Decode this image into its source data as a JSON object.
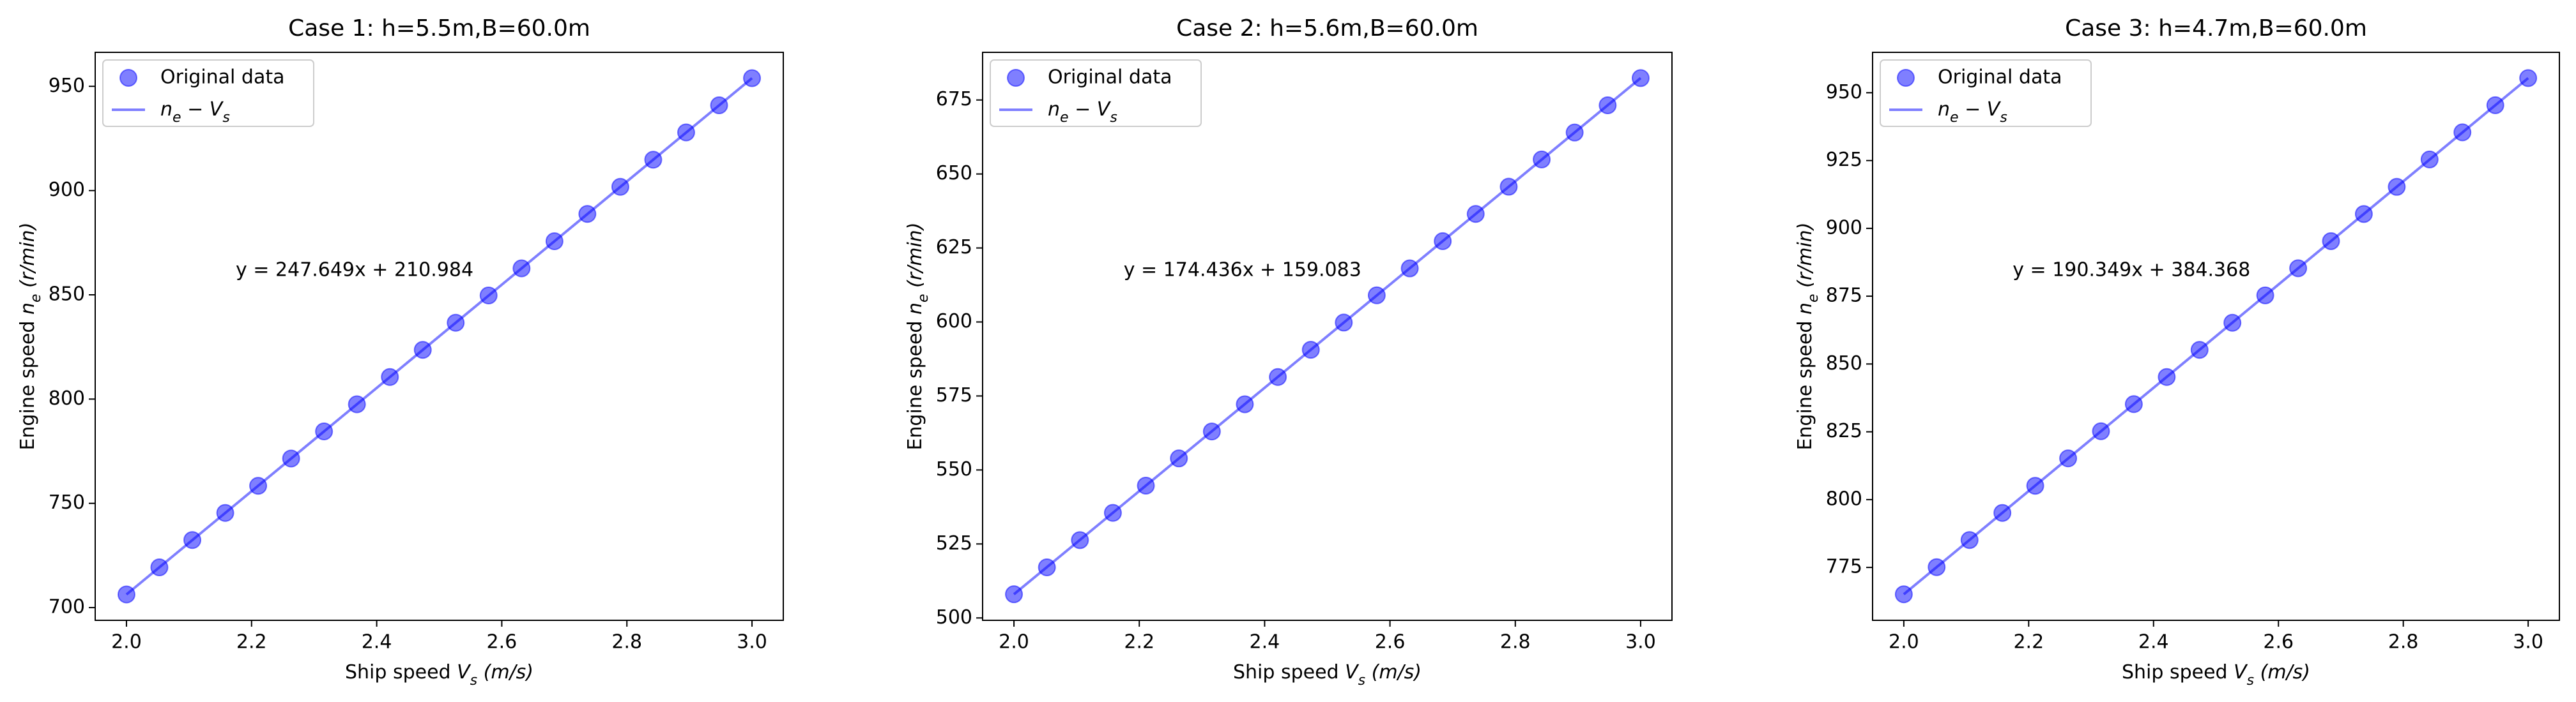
{
  "chart_data": [
    {
      "type": "scatter",
      "title": "Case 1: h=5.5m,B=60.0m",
      "xlabel": [
        "Ship speed ",
        "V",
        "s",
        " (m/s)"
      ],
      "ylabel": [
        "Engine speed ",
        "n",
        "e",
        " (r/min)"
      ],
      "annotation": "y = 247.649x + 210.984",
      "x": [
        2,
        2.0526,
        2.1053,
        2.1579,
        2.2105,
        2.2632,
        2.3158,
        2.3684,
        2.4211,
        2.4737,
        2.5263,
        2.5789,
        2.6316,
        2.6842,
        2.7368,
        2.7895,
        2.8421,
        2.8947,
        2.9474,
        3
      ],
      "series": [
        {
          "name": "Original data",
          "color": "#0000ff",
          "values": [
            706.3,
            719.3,
            732.4,
            745.4,
            758.4,
            771.5,
            784.5,
            797.5,
            810.6,
            823.6,
            836.6,
            849.7,
            862.7,
            875.7,
            888.8,
            901.8,
            914.8,
            927.9,
            940.9,
            953.9
          ]
        },
        {
          "name": [
            "n",
            "e",
            " − ",
            "V",
            "s"
          ],
          "type": "line",
          "color": "#0000ff",
          "x": [
            2,
            3
          ],
          "values": [
            706.3,
            953.9
          ]
        }
      ],
      "xlim": [
        1.95,
        3.05
      ],
      "xticks": [
        {
          "value": 2,
          "label": "2.0"
        },
        2.2,
        2.4,
        2.6,
        2.8,
        {
          "value": 3,
          "label": "3.0"
        }
      ],
      "ylim": [
        693.9,
        966.3
      ],
      "yticks": [
        700,
        750,
        800,
        850,
        900,
        950
      ],
      "legend": "upper left"
    },
    {
      "type": "scatter",
      "title": "Case 2: h=5.6m,B=60.0m",
      "xlabel": [
        "Ship speed ",
        "V",
        "s",
        " (m/s)"
      ],
      "ylabel": [
        "Engine speed ",
        "n",
        "e",
        " (r/min)"
      ],
      "annotation": "y = 174.436x + 159.083",
      "x": [
        2,
        2.0526,
        2.1053,
        2.1579,
        2.2105,
        2.2632,
        2.3158,
        2.3684,
        2.4211,
        2.4737,
        2.5263,
        2.5789,
        2.6316,
        2.6842,
        2.7368,
        2.7895,
        2.8421,
        2.8947,
        2.9474,
        3
      ],
      "series": [
        {
          "name": "Original data",
          "color": "#0000ff",
          "values": [
            508.0,
            517.1,
            526.3,
            535.5,
            544.7,
            553.9,
            563.0,
            572.2,
            581.4,
            590.6,
            599.8,
            609.0,
            618.1,
            627.3,
            636.5,
            645.7,
            654.9,
            664.0,
            673.2,
            682.4
          ]
        },
        {
          "name": [
            "n",
            "e",
            " − ",
            "V",
            "s"
          ],
          "type": "line",
          "color": "#0000ff",
          "x": [
            2,
            3
          ],
          "values": [
            508.0,
            682.4
          ]
        }
      ],
      "xlim": [
        1.95,
        3.05
      ],
      "xticks": [
        {
          "value": 2,
          "label": "2.0"
        },
        2.2,
        2.4,
        2.6,
        2.8,
        {
          "value": 3,
          "label": "3.0"
        }
      ],
      "ylim": [
        499.2,
        691.1
      ],
      "yticks": [
        500,
        525,
        550,
        575,
        600,
        625,
        650,
        675
      ],
      "legend": "upper left"
    },
    {
      "type": "scatter",
      "title": "Case 3: h=4.7m,B=60.0m",
      "xlabel": [
        "Ship speed ",
        "V",
        "s",
        " (m/s)"
      ],
      "ylabel": [
        "Engine speed ",
        "n",
        "e",
        " (r/min)"
      ],
      "annotation": "y = 190.349x + 384.368",
      "x": [
        2,
        2.0526,
        2.1053,
        2.1579,
        2.2105,
        2.2632,
        2.3158,
        2.3684,
        2.4211,
        2.4737,
        2.5263,
        2.5789,
        2.6316,
        2.6842,
        2.7368,
        2.7895,
        2.8421,
        2.8947,
        2.9474,
        3
      ],
      "series": [
        {
          "name": "Original data",
          "color": "#0000ff",
          "values": [
            765.1,
            775.1,
            785.1,
            795.1,
            805.1,
            815.2,
            825.2,
            835.2,
            845.2,
            855.2,
            865.2,
            875.3,
            885.3,
            895.3,
            905.3,
            915.3,
            925.4,
            935.4,
            945.4,
            955.4
          ]
        },
        {
          "name": [
            "n",
            "e",
            " − ",
            "V",
            "s"
          ],
          "type": "line",
          "color": "#0000ff",
          "x": [
            2,
            3
          ],
          "values": [
            765.1,
            955.4
          ]
        }
      ],
      "xlim": [
        1.95,
        3.05
      ],
      "xticks": [
        {
          "value": 2,
          "label": "2.0"
        },
        2.2,
        2.4,
        2.6,
        2.8,
        {
          "value": 3,
          "label": "3.0"
        }
      ],
      "ylim": [
        755.5,
        964.9
      ],
      "yticks": [
        775,
        800,
        825,
        850,
        875,
        900,
        925,
        950
      ],
      "legend": "upper left"
    }
  ]
}
